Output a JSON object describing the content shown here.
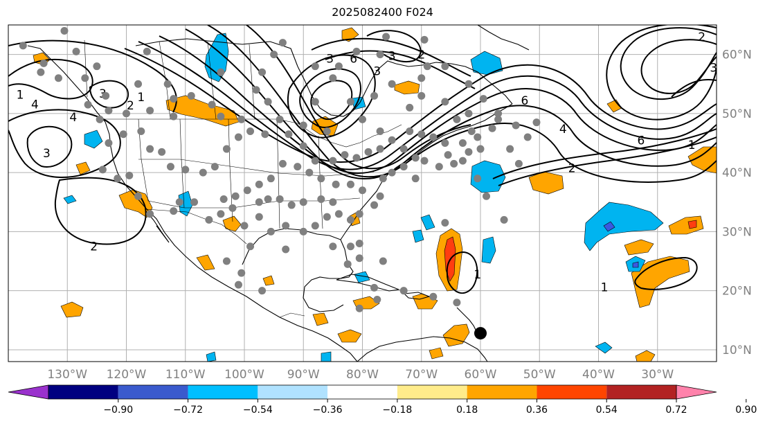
{
  "title": "2025082400 F024",
  "map": {
    "projection": "PlateCarree",
    "lon_range": [
      -140,
      -20
    ],
    "lat_range": [
      8,
      65
    ],
    "grid": true,
    "lon_ticks": [
      {
        "value": -130,
        "label": "130°W"
      },
      {
        "value": -120,
        "label": "120°W"
      },
      {
        "value": -110,
        "label": "110°W"
      },
      {
        "value": -100,
        "label": "100°W"
      },
      {
        "value": -90,
        "label": "90°W"
      },
      {
        "value": -80,
        "label": "80°W"
      },
      {
        "value": -70,
        "label": "70°W"
      },
      {
        "value": -60,
        "label": "60°W"
      },
      {
        "value": -50,
        "label": "50°W"
      },
      {
        "value": -40,
        "label": "40°W"
      },
      {
        "value": -30,
        "label": "30°W"
      }
    ],
    "lat_ticks": [
      {
        "value": 60,
        "label": "60°N"
      },
      {
        "value": 50,
        "label": "50°N"
      },
      {
        "value": 40,
        "label": "40°N"
      },
      {
        "value": 30,
        "label": "30°N"
      },
      {
        "value": 20,
        "label": "20°N"
      },
      {
        "value": 10,
        "label": "10°N"
      }
    ],
    "tick_color": "#808080",
    "contour_labels": [
      {
        "text": "1",
        "lon": -138,
        "lat": 53.2
      },
      {
        "text": "3",
        "lon": -124,
        "lat": 53.4
      },
      {
        "text": "4",
        "lon": -135.5,
        "lat": 51.6
      },
      {
        "text": "4",
        "lon": -129,
        "lat": 49.4
      },
      {
        "text": "1",
        "lon": -117.5,
        "lat": 52.8
      },
      {
        "text": "2",
        "lon": -119.3,
        "lat": 51.4
      },
      {
        "text": "3",
        "lon": -133.5,
        "lat": 43.3
      },
      {
        "text": "2",
        "lon": -125.5,
        "lat": 27.5
      },
      {
        "text": "3",
        "lon": -85.5,
        "lat": 59.3
      },
      {
        "text": "6",
        "lon": -81.5,
        "lat": 59.3
      },
      {
        "text": "3",
        "lon": -77.5,
        "lat": 57.2
      },
      {
        "text": "3",
        "lon": -75,
        "lat": 59.8
      },
      {
        "text": "2",
        "lon": -70,
        "lat": 60
      },
      {
        "text": "6",
        "lon": -52.5,
        "lat": 52.2
      },
      {
        "text": "4",
        "lon": -46,
        "lat": 47.4
      },
      {
        "text": "6",
        "lon": -32.8,
        "lat": 45.5
      },
      {
        "text": "1",
        "lon": -24.2,
        "lat": 44.7
      },
      {
        "text": "2",
        "lon": -22.5,
        "lat": 63
      },
      {
        "text": "3",
        "lon": -20.5,
        "lat": 57.8
      },
      {
        "text": "2",
        "lon": -44.5,
        "lat": 40.8
      },
      {
        "text": "1",
        "lon": -60.5,
        "lat": 22.8
      },
      {
        "text": "1",
        "lon": -39,
        "lat": 20.6
      }
    ],
    "contour_color": "#000000",
    "shading_colors": {
      "orange": "#ffa500",
      "red": "#ff3d10",
      "cyan": "#00b4f0",
      "blue": "#3a5ae0"
    },
    "station_color": "#808080",
    "storm_marker": {
      "lon": -60,
      "lat": 12.8,
      "color": "#000000"
    }
  },
  "colorbar": {
    "levels": [
      "−0.90",
      "−0.72",
      "−0.54",
      "−0.36",
      "−0.18",
      "0.18",
      "0.36",
      "0.54",
      "0.72",
      "0.90"
    ],
    "colors": [
      "#9a32cd",
      "#000080",
      "#3a5acd",
      "#00bfff",
      "#b0e2ff",
      "#ffffff",
      "#ffec8b",
      "#ffa500",
      "#ff4500",
      "#b22222",
      "#ff82ab"
    ],
    "extend": "both"
  }
}
